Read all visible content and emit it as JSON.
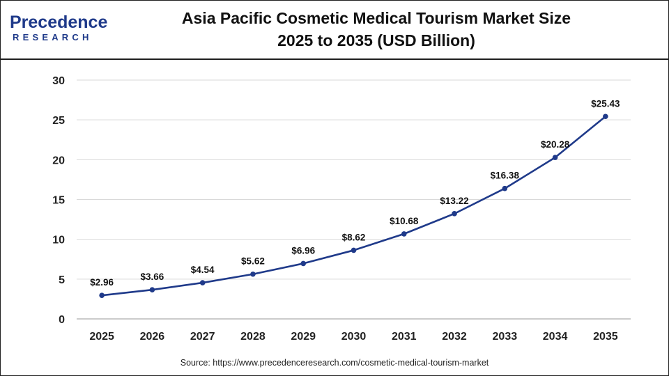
{
  "header": {
    "logo_main": "Precedence",
    "logo_sub": "RESEARCH",
    "title_line1": "Asia Pacific Cosmetic Medical Tourism Market Size",
    "title_line2": "2025 to 2035 (USD Billion)"
  },
  "colors": {
    "line": "#1f3a8a",
    "brand": "#1f3a8a",
    "grid": "#d9d9d9",
    "axis": "#222222"
  },
  "chart_data": {
    "type": "line",
    "categories": [
      "2025",
      "2026",
      "2027",
      "2028",
      "2029",
      "2030",
      "2031",
      "2032",
      "2033",
      "2034",
      "2035"
    ],
    "values": [
      2.96,
      3.66,
      4.54,
      5.62,
      6.96,
      8.62,
      10.68,
      13.22,
      16.38,
      20.28,
      25.43
    ],
    "data_labels": [
      "$2.96",
      "$3.66",
      "$4.54",
      "$5.62",
      "$6.96",
      "$8.62",
      "$10.68",
      "$13.22",
      "$16.38",
      "$20.28",
      "$25.43"
    ],
    "y_ticks": [
      0,
      5,
      10,
      15,
      20,
      25,
      30
    ],
    "ylim": [
      0,
      30
    ],
    "grid": true,
    "legend": "none"
  },
  "footer": {
    "source": "Source: https://www.precedenceresearch.com/cosmetic-medical-tourism-market"
  }
}
